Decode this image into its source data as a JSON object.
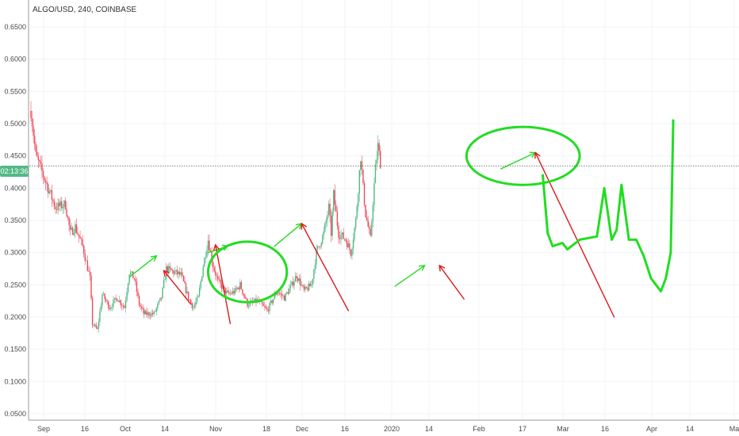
{
  "symbol_title": "ALGO/USD, 240, COINBASE",
  "price_tag": {
    "text": "02:13:36",
    "color": "#53b987"
  },
  "colors": {
    "up": "#53b987",
    "down": "#eb4d5c",
    "annot_green": "#22dd22",
    "annot_red": "#e01818",
    "grid": "#f0f3fa",
    "axis": "#9a9a9a"
  },
  "chart_data": {
    "type": "candlestick",
    "title": "ALGO/USD, 240, COINBASE",
    "y_ticks": [
      "0.6500",
      "0.6000",
      "0.5500",
      "0.5000",
      "0.4500",
      "0.4000",
      "0.3500",
      "0.3000",
      "0.2500",
      "0.2000",
      "0.1500",
      "0.1000",
      "0.0500"
    ],
    "x_ticks": [
      "Sep",
      "16",
      "Oct",
      "14",
      "Nov",
      "18",
      "Dec",
      "16",
      "2020",
      "14",
      "Feb",
      "17",
      "Mar",
      "16",
      "Apr",
      "14",
      "Ma"
    ],
    "ylim": [
      0.05,
      0.675
    ],
    "grid": true,
    "current_price_line": 0.4345,
    "price_path": [
      [
        0,
        0.52
      ],
      [
        2,
        0.45
      ],
      [
        6,
        0.41
      ],
      [
        10,
        0.37
      ],
      [
        14,
        0.375
      ],
      [
        16,
        0.33
      ],
      [
        18,
        0.34
      ],
      [
        21,
        0.31
      ],
      [
        24,
        0.26
      ],
      [
        25,
        0.19
      ],
      [
        27,
        0.18
      ],
      [
        29,
        0.235
      ],
      [
        32,
        0.215
      ],
      [
        35,
        0.23
      ],
      [
        38,
        0.215
      ],
      [
        40,
        0.27
      ],
      [
        42,
        0.26
      ],
      [
        44,
        0.22
      ],
      [
        46,
        0.205
      ],
      [
        50,
        0.205
      ],
      [
        53,
        0.23
      ],
      [
        55,
        0.275
      ],
      [
        58,
        0.27
      ],
      [
        61,
        0.265
      ],
      [
        64,
        0.23
      ],
      [
        66,
        0.215
      ],
      [
        68,
        0.23
      ],
      [
        70,
        0.28
      ],
      [
        72,
        0.32
      ],
      [
        74,
        0.28
      ],
      [
        76,
        0.255
      ],
      [
        80,
        0.235
      ],
      [
        83,
        0.24
      ],
      [
        85,
        0.25
      ],
      [
        88,
        0.22
      ],
      [
        92,
        0.225
      ],
      [
        96,
        0.21
      ],
      [
        100,
        0.24
      ],
      [
        103,
        0.23
      ],
      [
        106,
        0.25
      ],
      [
        108,
        0.265
      ],
      [
        111,
        0.24
      ],
      [
        114,
        0.25
      ],
      [
        116,
        0.3
      ],
      [
        119,
        0.33
      ],
      [
        121,
        0.37
      ],
      [
        122,
        0.33
      ],
      [
        123,
        0.39
      ],
      [
        125,
        0.33
      ],
      [
        128,
        0.32
      ],
      [
        130,
        0.3
      ],
      [
        132,
        0.35
      ],
      [
        134,
        0.45
      ],
      [
        135,
        0.4
      ],
      [
        136,
        0.36
      ],
      [
        138,
        0.32
      ],
      [
        139,
        0.38
      ],
      [
        140,
        0.43
      ],
      [
        141,
        0.465
      ],
      [
        142,
        0.44
      ]
    ],
    "annotations": {
      "green_arrows": [
        [
          [
            40,
            0.262
          ],
          [
            51,
            0.295
          ]
        ],
        [
          [
            72,
            0.3
          ],
          [
            80,
            0.31
          ]
        ],
        [
          [
            99,
            0.31
          ],
          [
            110,
            0.345
          ]
        ],
        [
          [
            148,
            0.248
          ],
          [
            160,
            0.28
          ]
        ],
        [
          [
            191,
            0.43
          ],
          [
            205,
            0.455
          ]
        ]
      ],
      "red_arrows": [
        [
          [
            65,
            0.22
          ],
          [
            54,
            0.272
          ]
        ],
        [
          [
            81,
            0.19
          ],
          [
            75,
            0.312
          ]
        ],
        [
          [
            129,
            0.21
          ],
          [
            110,
            0.345
          ]
        ],
        [
          [
            176,
            0.228
          ],
          [
            166,
            0.28
          ]
        ],
        [
          [
            237,
            0.2
          ],
          [
            205,
            0.455
          ]
        ]
      ],
      "circles": [
        {
          "cx": 88,
          "cy": 0.27,
          "rx": 16,
          "ry": 0.047
        },
        {
          "cx": 200,
          "cy": 0.45,
          "rx": 23,
          "ry": 0.045
        }
      ],
      "green_drawing": [
        [
          [
            208,
            0.42
          ],
          [
            210,
            0.33
          ],
          [
            212,
            0.31
          ],
          [
            216,
            0.315
          ],
          [
            218,
            0.305
          ],
          [
            223,
            0.32
          ],
          [
            230,
            0.325
          ],
          [
            233,
            0.4
          ],
          [
            236,
            0.32
          ],
          [
            238,
            0.335
          ],
          [
            240,
            0.405
          ],
          [
            243,
            0.32
          ],
          [
            246,
            0.32
          ],
          [
            249,
            0.295
          ],
          [
            252,
            0.26
          ],
          [
            256,
            0.24
          ],
          [
            258,
            0.26
          ],
          [
            260,
            0.3
          ],
          [
            261,
            0.5
          ],
          [
            261,
            0.505
          ]
        ]
      ]
    }
  }
}
